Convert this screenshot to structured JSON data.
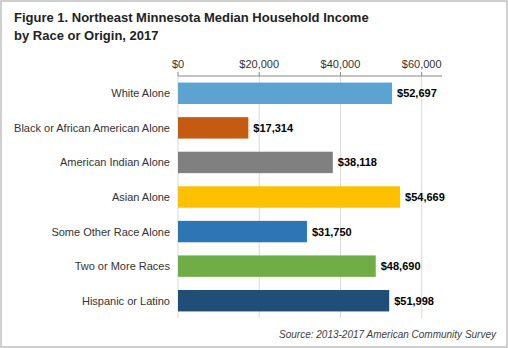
{
  "chart_data": {
    "type": "bar",
    "orientation": "horizontal",
    "title": "Figure 1. Northeast Minnesota Median Household Income",
    "subtitle": "by Race or Origin, 2017",
    "annotations": [
      "Source: 2013-2017 American Community Survey"
    ],
    "categories": [
      "Hispanic or Latino",
      "Two or More Races",
      "Some Other Race Alone",
      "Asian Alone",
      "American Indian Alone",
      "Black or African American Alone",
      "White Alone"
    ],
    "values": [
      51998,
      48690,
      31750,
      54669,
      38118,
      17314,
      52697
    ],
    "value_labels": [
      "$51,998",
      "$48,690",
      "$31,750",
      "$54,669",
      "$38,118",
      "$17,314",
      "$52,697"
    ],
    "colors": [
      "#1f4e79",
      "#70ad47",
      "#2e75b6",
      "#ffc000",
      "#808080",
      "#c55a11",
      "#5ba3d0"
    ],
    "data_labels": true,
    "xlim": [
      0,
      65000
    ],
    "xticks": [
      {
        "value": 0,
        "label": "$0"
      },
      {
        "value": 20000,
        "label": "$20,000"
      },
      {
        "value": 40000,
        "label": "$40,000"
      },
      {
        "value": 60000,
        "label": "$60,000"
      }
    ],
    "grid": true
  }
}
